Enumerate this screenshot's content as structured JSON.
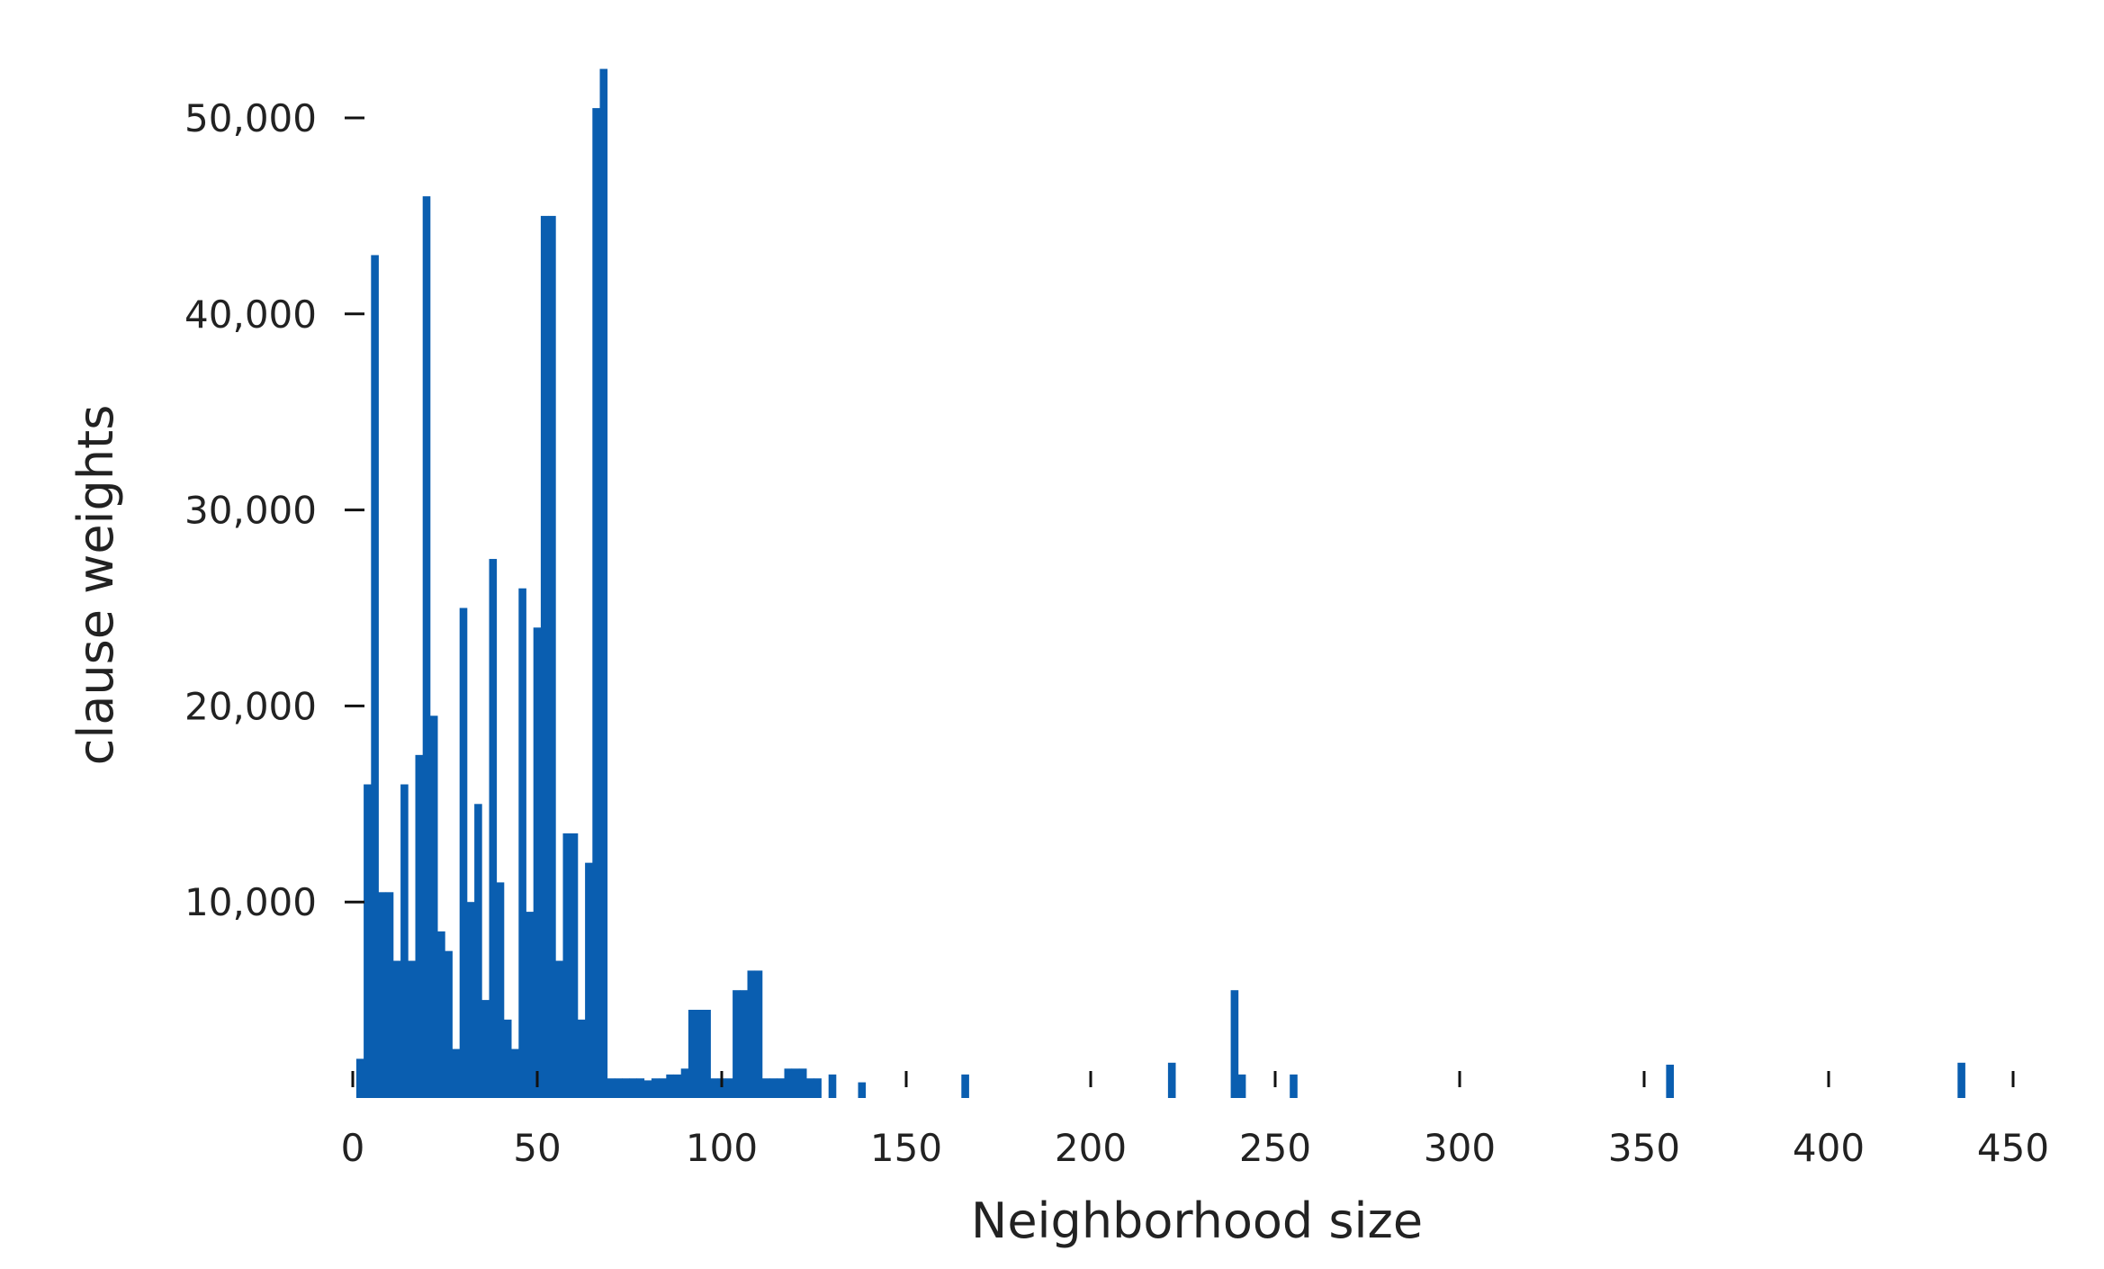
{
  "chart_data": {
    "type": "bar",
    "title": "",
    "xlabel": "Neighborhood size",
    "ylabel": "clause weights",
    "xlim": [
      0,
      450
    ],
    "ylim": [
      0,
      52500
    ],
    "grid": false,
    "legend": "none",
    "bar_color": "#0a5eb0",
    "x_ticks": [
      0,
      50,
      100,
      150,
      200,
      250,
      300,
      350,
      400,
      450
    ],
    "x_tick_labels": [
      "0",
      "50",
      "100",
      "150",
      "200",
      "250",
      "300",
      "350",
      "400",
      "450"
    ],
    "y_ticks": [
      10000,
      20000,
      30000,
      40000,
      50000
    ],
    "y_tick_labels": [
      "10,000",
      "20,000",
      "30,000",
      "40,000",
      "50,000"
    ],
    "x": [
      2,
      4,
      6,
      8,
      10,
      12,
      14,
      16,
      18,
      20,
      22,
      24,
      26,
      28,
      30,
      32,
      34,
      36,
      38,
      40,
      42,
      44,
      46,
      48,
      50,
      52,
      54,
      56,
      58,
      60,
      62,
      64,
      66,
      68,
      70,
      72,
      74,
      76,
      78,
      80,
      82,
      84,
      86,
      88,
      90,
      92,
      94,
      96,
      98,
      100,
      102,
      104,
      106,
      108,
      110,
      112,
      114,
      116,
      118,
      120,
      122,
      124,
      126,
      130,
      138,
      166,
      222,
      239,
      241,
      255,
      357,
      436
    ],
    "values": [
      2000,
      16000,
      43000,
      10500,
      10500,
      7000,
      16000,
      7000,
      17500,
      46000,
      19500,
      8500,
      7500,
      2500,
      25000,
      10000,
      15000,
      5000,
      27500,
      11000,
      4000,
      2500,
      26000,
      9500,
      24000,
      45000,
      45000,
      7000,
      13500,
      13500,
      4000,
      12000,
      50500,
      52500,
      1000,
      1000,
      1000,
      1000,
      1000,
      900,
      1000,
      1000,
      1200,
      1200,
      1500,
      4500,
      4500,
      4500,
      1000,
      1000,
      1000,
      5500,
      5500,
      6500,
      6500,
      1000,
      1000,
      1000,
      1500,
      1500,
      1500,
      1000,
      1000,
      1200,
      800,
      1200,
      1800,
      5500,
      1200,
      1200,
      1700,
      1800
    ]
  }
}
